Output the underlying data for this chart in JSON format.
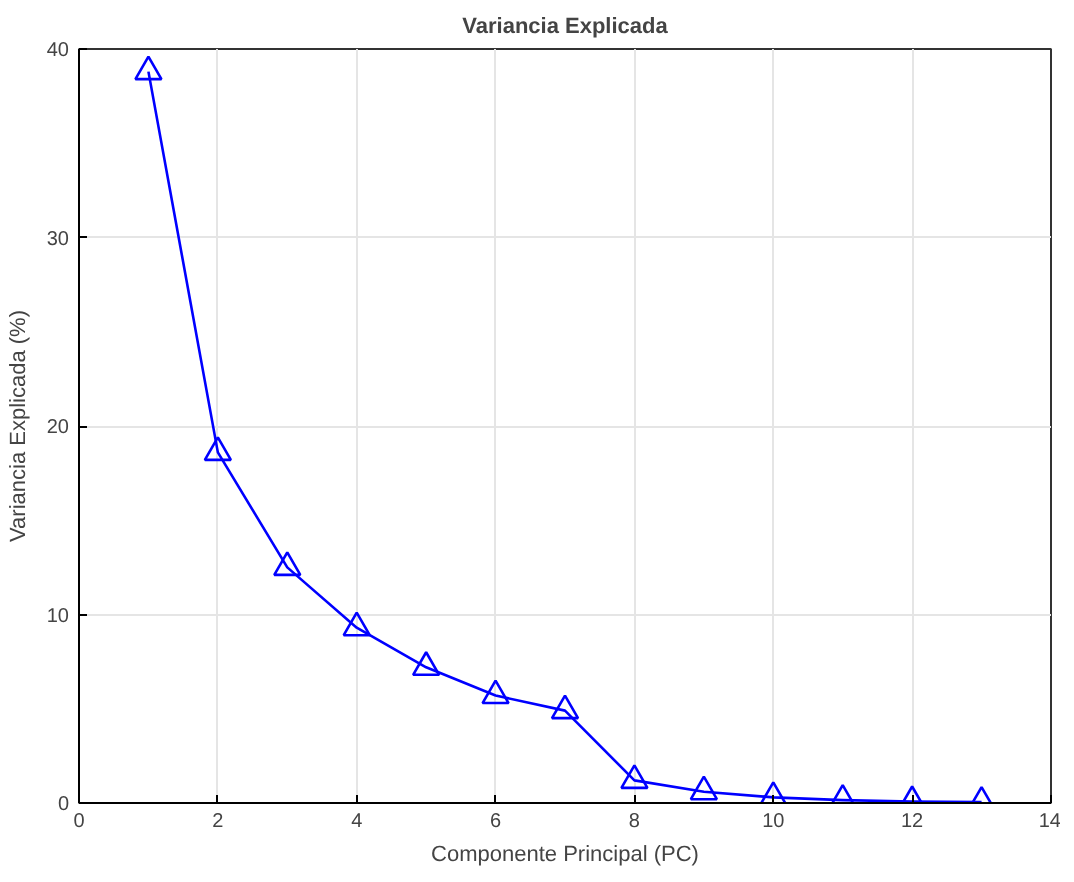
{
  "chart_data": {
    "type": "line",
    "title": "Variancia Explicada",
    "xlabel": "Componente Principal (PC)",
    "ylabel": "Variancia Explicada (%)",
    "x": [
      1,
      2,
      3,
      4,
      5,
      6,
      7,
      8,
      9,
      10,
      11,
      12,
      13
    ],
    "series": [
      {
        "color": "#0000ff",
        "values": [
          38.8,
          18.6,
          12.5,
          9.3,
          7.2,
          5.7,
          4.9,
          1.2,
          0.6,
          0.3,
          0.15,
          0.08,
          0.05
        ]
      }
    ],
    "xlim": [
      0,
      14
    ],
    "xticks": [
      0,
      2,
      4,
      6,
      8,
      10,
      12,
      14
    ],
    "ylim": [
      0,
      40
    ],
    "yticks": [
      0,
      10,
      20,
      30,
      40
    ],
    "grid": true,
    "marker": "triangle",
    "line_style": "solid"
  }
}
